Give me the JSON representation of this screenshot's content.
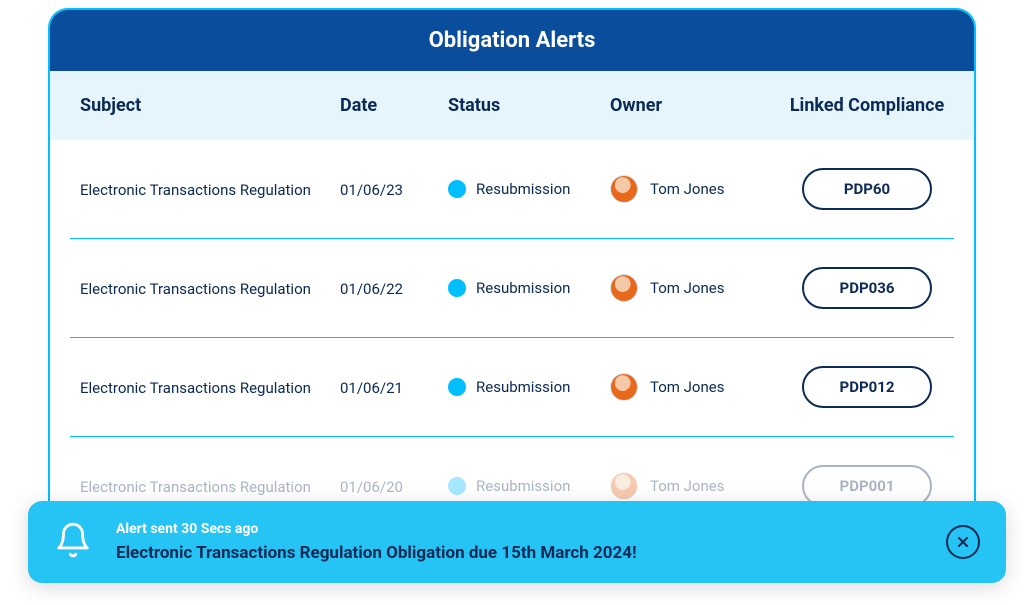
{
  "title": "Obligation Alerts",
  "columns": {
    "subject": "Subject",
    "date": "Date",
    "status": "Status",
    "owner": "Owner",
    "compliance": "Linked Compliance"
  },
  "rows": [
    {
      "subject": "Electronic Transactions Regulation",
      "date": "01/06/23",
      "status": "Resubmission",
      "status_color": "#00bfff",
      "owner": "Tom Jones",
      "compliance": "PDP60",
      "faded": false
    },
    {
      "subject": "Electronic Transactions Regulation",
      "date": "01/06/22",
      "status": "Resubmission",
      "status_color": "#00bfff",
      "owner": "Tom Jones",
      "compliance": "PDP036",
      "faded": false
    },
    {
      "subject": "Electronic Transactions Regulation",
      "date": "01/06/21",
      "status": "Resubmission",
      "status_color": "#00bfff",
      "owner": "Tom Jones",
      "compliance": "PDP012",
      "faded": false
    },
    {
      "subject": "Electronic Transactions Regulation",
      "date": "01/06/20",
      "status": "Resubmission",
      "status_color": "#00bfff",
      "owner": "Tom Jones",
      "compliance": "PDP001",
      "faded": true
    }
  ],
  "toast": {
    "time_text": "Alert sent 30 Secs ago",
    "main_text": "Electronic Transactions Regulation Obligation due 15th March 2024!",
    "background_color": "#26c4f5"
  }
}
